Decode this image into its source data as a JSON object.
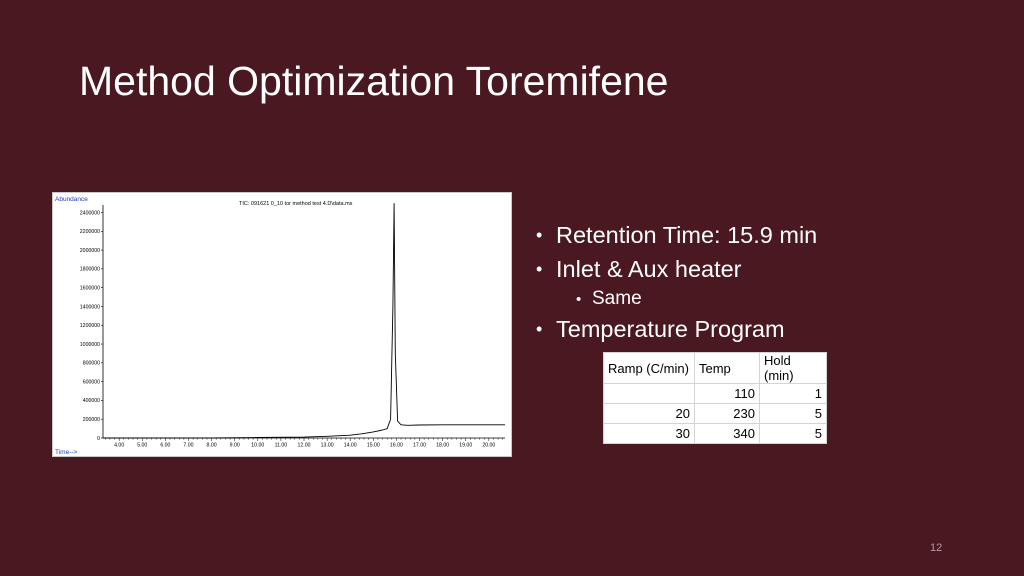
{
  "slide": {
    "title": "Method Optimization Toremifene",
    "number": "12"
  },
  "bullets": [
    {
      "text": "Retention Time: 15.9 min",
      "level": 1
    },
    {
      "text": "Inlet & Aux heater",
      "level": 1
    },
    {
      "text": "Same",
      "level": 2
    },
    {
      "text": "Temperature Program",
      "level": 1
    }
  ],
  "temperature_table": {
    "headers": [
      "Ramp (C/min)",
      "Temp",
      "Hold (min)"
    ],
    "rows": [
      [
        "",
        "110",
        "1"
      ],
      [
        "20",
        "230",
        "5"
      ],
      [
        "30",
        "340",
        "5"
      ]
    ]
  },
  "colors": {
    "background": "#4a1820",
    "axis_label_blue": "#1f3fbf",
    "trace": "#000000"
  },
  "chart_data": {
    "type": "line",
    "title": "TIC: 091621 0_10 tor method test 4.D\\data.ms",
    "ylabel": "Abundance",
    "xlabel": "Time-->",
    "xlim": [
      3.3,
      20.7
    ],
    "ylim": [
      0,
      2480000
    ],
    "xticks": [
      "4.00",
      "5.00",
      "6.00",
      "7.00",
      "8.00",
      "9.00",
      "10.00",
      "11.00",
      "12.00",
      "13.00",
      "14.00",
      "15.00",
      "16.00",
      "17.00",
      "18.00",
      "19.00",
      "20.00"
    ],
    "yticks": [
      "0",
      "200000",
      "400000",
      "600000",
      "800000",
      "1000000",
      "1200000",
      "1400000",
      "1600000",
      "1800000",
      "2000000",
      "2200000",
      "2400000"
    ],
    "grid": false,
    "series": [
      {
        "x": [
          3.3,
          8.0,
          10.0,
          12.0,
          13.0,
          14.0,
          14.5,
          15.0,
          15.4,
          15.6,
          15.75,
          15.85,
          15.9,
          15.95,
          16.05,
          16.2,
          16.5,
          17.0,
          18.0,
          19.0,
          20.0,
          20.7
        ],
        "y": [
          0,
          0,
          5000,
          10000,
          18000,
          30000,
          45000,
          65000,
          85000,
          100000,
          200000,
          1400000,
          2500000,
          900000,
          180000,
          140000,
          135000,
          138000,
          140000,
          140000,
          140000,
          140000
        ]
      }
    ]
  }
}
